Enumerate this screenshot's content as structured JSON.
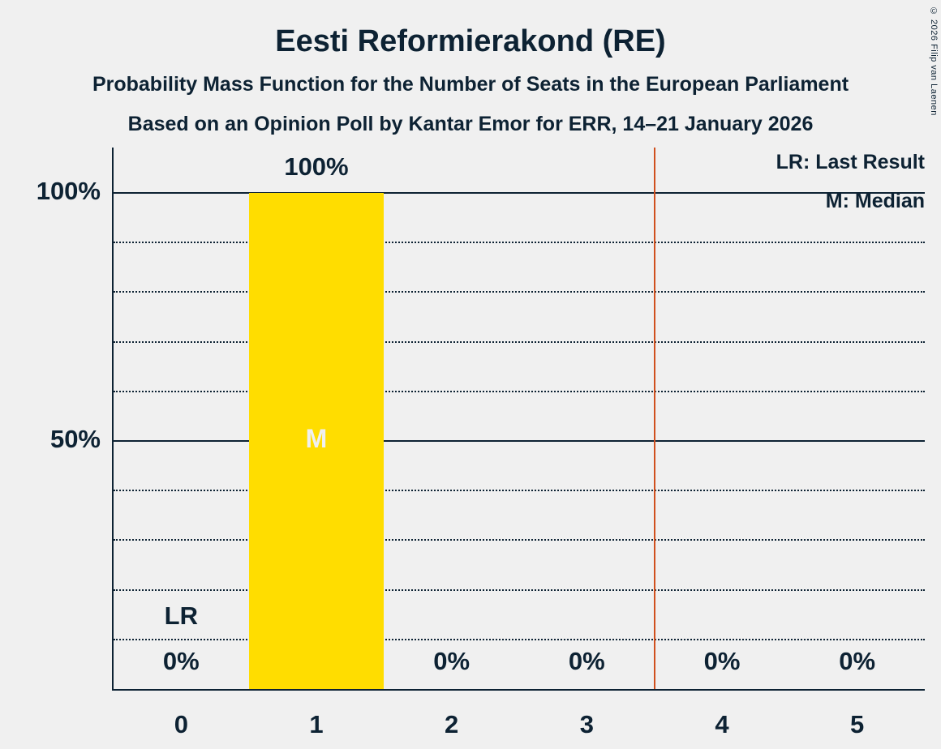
{
  "header": {
    "title": "Eesti Reformierakond (RE)",
    "subtitle1": "Probability Mass Function for the Number of Seats in the European Parliament",
    "subtitle2": "Based on an Opinion Poll by Kantar Emor for ERR, 14–21 January 2026",
    "copyright": "© 2026 Filip van Laenen"
  },
  "legend": {
    "lr_label": "LR: Last Result",
    "m_label": "M: Median"
  },
  "chart_data": {
    "type": "bar",
    "title": "Eesti Reformierakond (RE)",
    "categories": [
      "0",
      "1",
      "2",
      "3",
      "4",
      "5"
    ],
    "values": [
      0,
      100,
      0,
      0,
      0,
      0
    ],
    "value_labels": [
      "0%",
      "100%",
      "0%",
      "0%",
      "0%",
      "0%"
    ],
    "xlabel": "",
    "ylabel": "",
    "ylim": [
      0,
      109
    ],
    "yticks": [
      {
        "value": 50,
        "label": "50%"
      },
      {
        "value": 100,
        "label": "100%"
      }
    ],
    "gridlines_dotted": [
      10,
      20,
      30,
      40,
      60,
      70,
      80,
      90
    ],
    "gridlines_solid": [
      50,
      100
    ],
    "grid": true,
    "legend_position": "top-right",
    "median_category": "1",
    "median_marker": "M",
    "last_result_category": "0",
    "last_result_marker": "LR",
    "reference_line_x": 3.5,
    "bar_color": "#FFDD00",
    "reference_line_color": "#D0501E",
    "median_marker_color": "#F0F0F0",
    "text_color": "#0D2233",
    "background_color": "#F0F0F0"
  }
}
